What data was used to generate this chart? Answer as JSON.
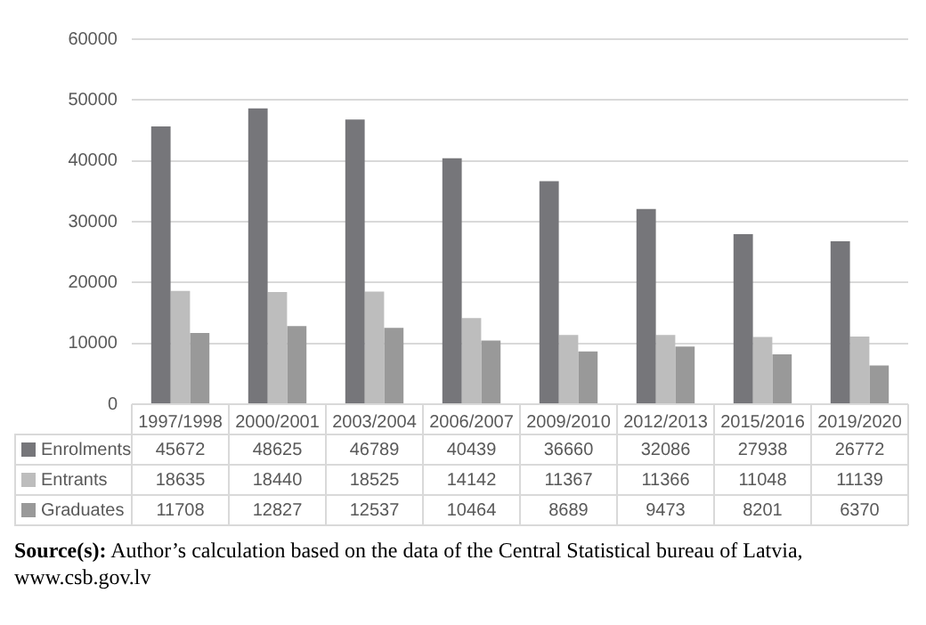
{
  "chart_data": {
    "type": "bar",
    "categories": [
      "1997/1998",
      "2000/2001",
      "2003/2004",
      "2006/2007",
      "2009/2010",
      "2012/2013",
      "2015/2016",
      "2019/2020"
    ],
    "series": [
      {
        "name": "Enrolments",
        "color": "#76767a",
        "values": [
          45672,
          48625,
          46789,
          40439,
          36660,
          32086,
          27938,
          26772
        ]
      },
      {
        "name": "Entrants",
        "color": "#bdbdbd",
        "values": [
          18635,
          18440,
          18525,
          14142,
          11367,
          11366,
          11048,
          11139
        ]
      },
      {
        "name": "Graduates",
        "color": "#999999",
        "values": [
          11708,
          12827,
          12537,
          10464,
          8689,
          9473,
          8201,
          6370
        ]
      }
    ],
    "ylim": [
      0,
      60000
    ],
    "yticks": [
      0,
      10000,
      20000,
      30000,
      40000,
      50000,
      60000
    ],
    "grid": "y",
    "legend": "bottom left",
    "data_labels": true,
    "annotations": [
      "Source(s): Author’s calculation based on the data of the Central Statistical bureau of Latvia, www.csb.gov.lv"
    ]
  }
}
